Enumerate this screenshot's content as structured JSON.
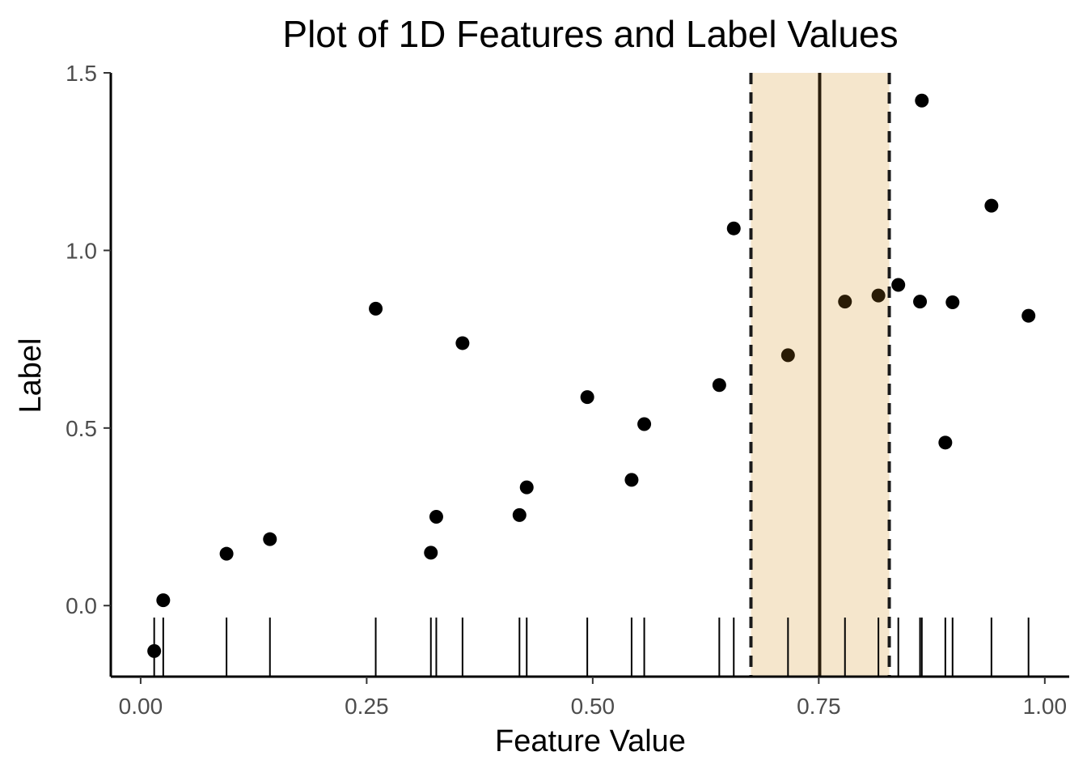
{
  "chart_data": {
    "type": "scatter",
    "title": "Plot of 1D Features and Label Values",
    "xlabel": "Feature Value",
    "ylabel": "Label",
    "xlim": [
      -0.033,
      1.027
    ],
    "ylim": [
      -0.2,
      1.5
    ],
    "xticks": [
      0.0,
      0.25,
      0.5,
      0.75,
      1.0
    ],
    "xtick_labels": [
      "0.00",
      "0.25",
      "0.50",
      "0.75",
      "1.00"
    ],
    "yticks": [
      0.0,
      0.5,
      1.0,
      1.5
    ],
    "ytick_labels": [
      "0.0",
      "0.5",
      "1.0",
      "1.5"
    ],
    "grid": false,
    "highlight_band": {
      "xmin": 0.675,
      "xmax": 0.828,
      "center": 0.751,
      "fill": "#f5e6cc",
      "line_color": "#1a1a1a"
    },
    "rug": true,
    "point_color": "#000000",
    "points": [
      {
        "x": 0.015,
        "y": -0.128
      },
      {
        "x": 0.025,
        "y": 0.015
      },
      {
        "x": 0.095,
        "y": 0.146
      },
      {
        "x": 0.143,
        "y": 0.187
      },
      {
        "x": 0.26,
        "y": 0.836
      },
      {
        "x": 0.321,
        "y": 0.149
      },
      {
        "x": 0.327,
        "y": 0.25
      },
      {
        "x": 0.356,
        "y": 0.739
      },
      {
        "x": 0.419,
        "y": 0.255
      },
      {
        "x": 0.427,
        "y": 0.333
      },
      {
        "x": 0.494,
        "y": 0.587
      },
      {
        "x": 0.543,
        "y": 0.354
      },
      {
        "x": 0.557,
        "y": 0.511
      },
      {
        "x": 0.64,
        "y": 0.621
      },
      {
        "x": 0.656,
        "y": 1.062
      },
      {
        "x": 0.716,
        "y": 0.705
      },
      {
        "x": 0.779,
        "y": 0.856
      },
      {
        "x": 0.816,
        "y": 0.873
      },
      {
        "x": 0.838,
        "y": 0.903
      },
      {
        "x": 0.862,
        "y": 0.856
      },
      {
        "x": 0.864,
        "y": 1.422
      },
      {
        "x": 0.89,
        "y": 0.459
      },
      {
        "x": 0.898,
        "y": 0.854
      },
      {
        "x": 0.941,
        "y": 1.126
      },
      {
        "x": 0.982,
        "y": 0.816
      }
    ]
  }
}
